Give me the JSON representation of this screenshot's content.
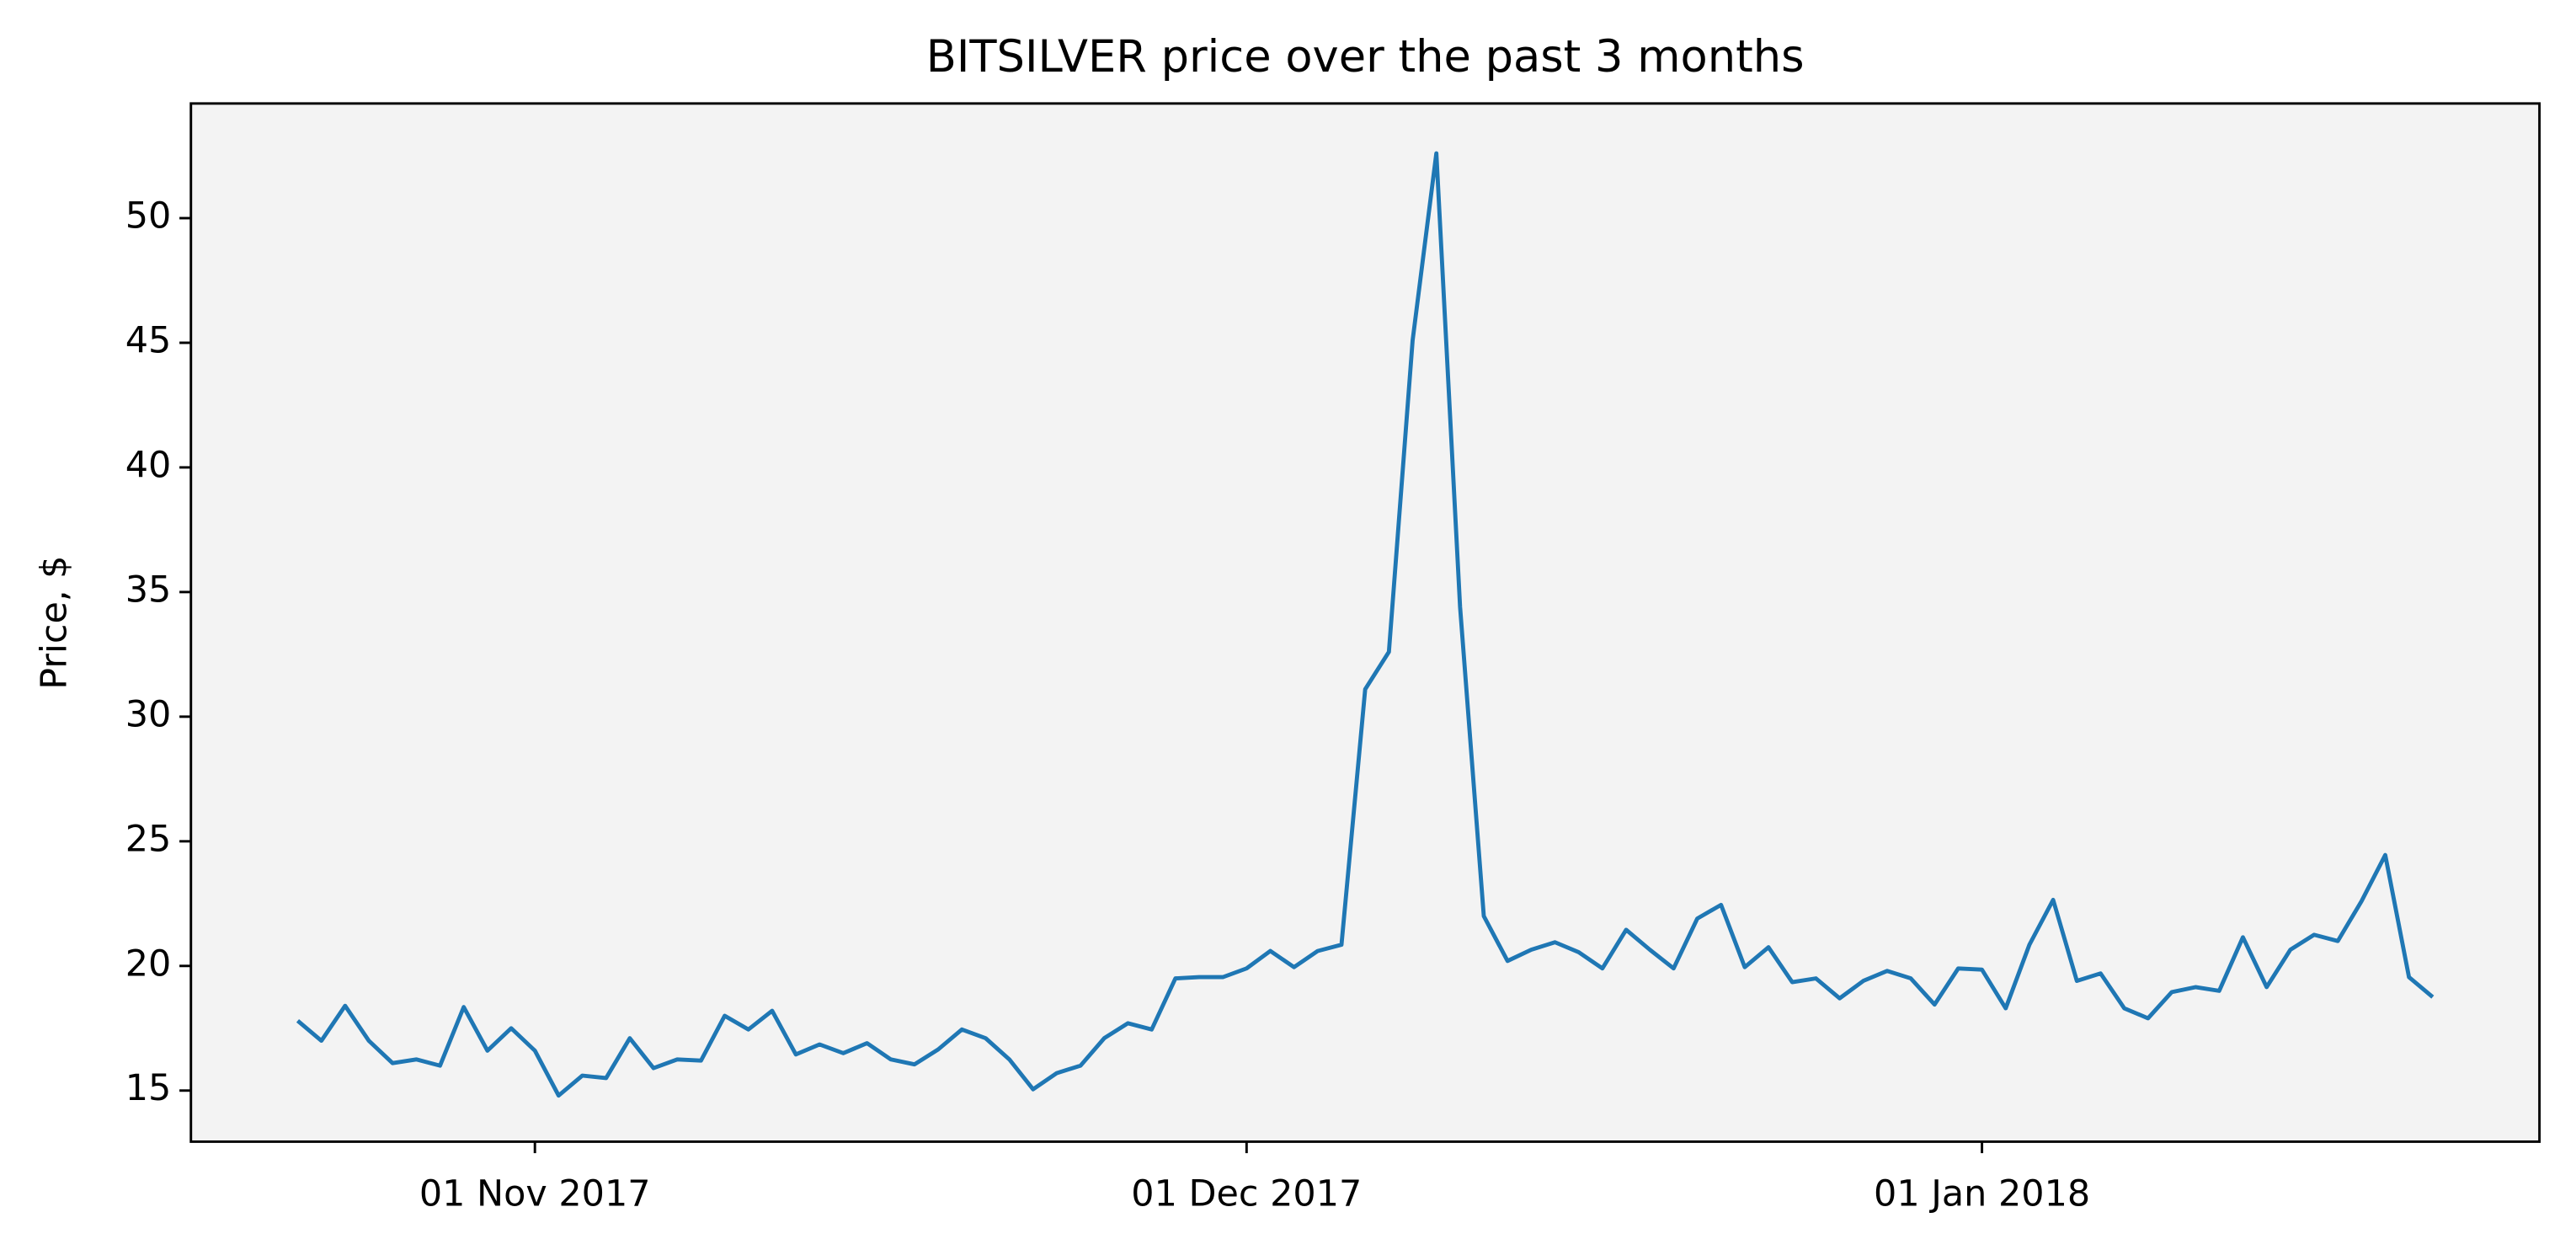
{
  "chart_data": {
    "type": "line",
    "title": "BITSILVER price over the past 3 months",
    "ylabel": "Price, $",
    "x": [
      "2017-10-22",
      "2017-10-23",
      "2017-10-24",
      "2017-10-25",
      "2017-10-26",
      "2017-10-27",
      "2017-10-28",
      "2017-10-29",
      "2017-10-30",
      "2017-10-31",
      "2017-11-01",
      "2017-11-02",
      "2017-11-03",
      "2017-11-04",
      "2017-11-05",
      "2017-11-06",
      "2017-11-07",
      "2017-11-08",
      "2017-11-09",
      "2017-11-10",
      "2017-11-11",
      "2017-11-12",
      "2017-11-13",
      "2017-11-14",
      "2017-11-15",
      "2017-11-16",
      "2017-11-17",
      "2017-11-18",
      "2017-11-19",
      "2017-11-20",
      "2017-11-21",
      "2017-11-22",
      "2017-11-23",
      "2017-11-24",
      "2017-11-25",
      "2017-11-26",
      "2017-11-27",
      "2017-11-28",
      "2017-11-29",
      "2017-11-30",
      "2017-12-01",
      "2017-12-02",
      "2017-12-03",
      "2017-12-04",
      "2017-12-05",
      "2017-12-06",
      "2017-12-07",
      "2017-12-08",
      "2017-12-09",
      "2017-12-10",
      "2017-12-11",
      "2017-12-12",
      "2017-12-13",
      "2017-12-14",
      "2017-12-15",
      "2017-12-16",
      "2017-12-17",
      "2017-12-18",
      "2017-12-19",
      "2017-12-20",
      "2017-12-21",
      "2017-12-22",
      "2017-12-23",
      "2017-12-24",
      "2017-12-25",
      "2017-12-26",
      "2017-12-27",
      "2017-12-28",
      "2017-12-29",
      "2017-12-30",
      "2017-12-31",
      "2018-01-01",
      "2018-01-02",
      "2018-01-03",
      "2018-01-04",
      "2018-01-05",
      "2018-01-06",
      "2018-01-07",
      "2018-01-08",
      "2018-01-09",
      "2018-01-10",
      "2018-01-11",
      "2018-01-12",
      "2018-01-13",
      "2018-01-14",
      "2018-01-15",
      "2018-01-16",
      "2018-01-17",
      "2018-01-18",
      "2018-01-19",
      "2018-01-20"
    ],
    "values": [
      17.8,
      17.0,
      18.4,
      17.0,
      16.1,
      16.25,
      16.0,
      18.35,
      16.6,
      17.5,
      16.6,
      14.8,
      15.6,
      15.5,
      17.1,
      15.9,
      16.25,
      16.2,
      18.0,
      17.45,
      18.2,
      16.45,
      16.85,
      16.5,
      16.9,
      16.25,
      16.05,
      16.65,
      17.45,
      17.1,
      16.25,
      15.05,
      15.7,
      16.0,
      17.1,
      17.7,
      17.45,
      19.5,
      19.55,
      19.55,
      19.9,
      20.6,
      19.95,
      20.6,
      20.85,
      31.1,
      32.6,
      45.1,
      52.6,
      34.4,
      22.0,
      20.2,
      20.65,
      20.95,
      20.55,
      19.9,
      21.45,
      20.65,
      19.9,
      21.9,
      22.45,
      19.95,
      20.75,
      19.35,
      19.5,
      18.7,
      19.4,
      19.8,
      19.5,
      18.45,
      19.9,
      19.85,
      18.3,
      20.85,
      22.65,
      19.4,
      19.7,
      18.3,
      17.9,
      18.95,
      19.15,
      19.0,
      21.15,
      19.15,
      20.65,
      21.25,
      21.0,
      22.6,
      24.45,
      19.55,
      18.75
    ],
    "color": "#1f77b4",
    "xlim": [
      "2017-10-17T12:00:00Z",
      "2018-01-24T12:00:00Z"
    ],
    "xticks": [
      {
        "value": "2017-11-01",
        "label": "01 Nov 2017"
      },
      {
        "value": "2017-12-01",
        "label": "01 Dec 2017"
      },
      {
        "value": "2018-01-01",
        "label": "01 Jan 2018"
      }
    ],
    "ylim": [
      12.95,
      54.6
    ],
    "yticks": [
      15,
      20,
      25,
      30,
      35,
      40,
      45,
      50
    ],
    "background": "#f3f3f3"
  }
}
